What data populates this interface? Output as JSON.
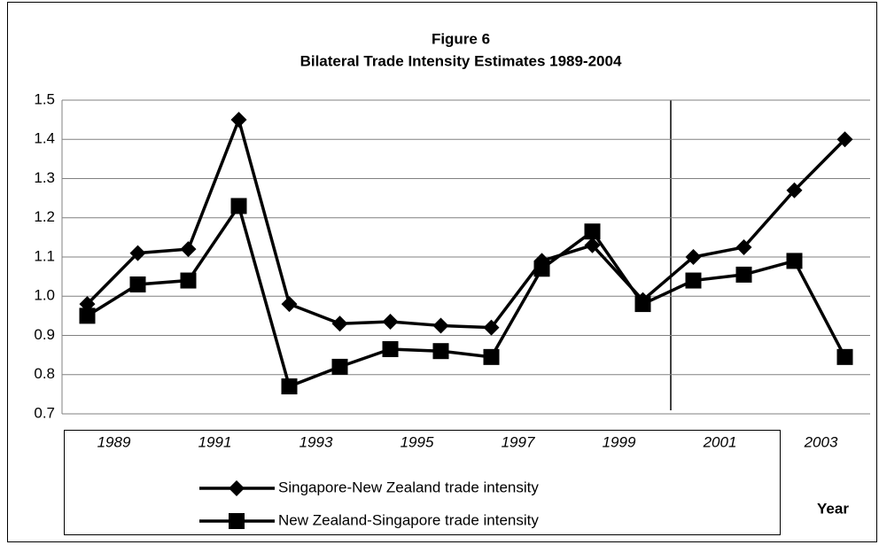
{
  "chart_data": {
    "type": "line",
    "title": "Figure 6",
    "subtitle": "Bilateral Trade Intensity Estimates 1989-2004",
    "x_label": "Year",
    "categories": [
      "1989",
      null,
      "1991",
      null,
      "1993",
      null,
      "1995",
      null,
      "1997",
      null,
      "1999",
      null,
      "2001",
      null,
      "2003",
      null
    ],
    "series": [
      {
        "name": "Singapore-New Zealand trade intensity",
        "color": "#000000",
        "marker": "diamond",
        "values": [
          0.98,
          1.11,
          1.12,
          1.45,
          0.98,
          0.93,
          0.935,
          0.925,
          0.92,
          1.09,
          1.13,
          0.99,
          1.1,
          1.125,
          1.27,
          1.4
        ]
      },
      {
        "name": "New Zealand-Singapore trade intensity",
        "color": "#000000",
        "marker": "square",
        "values": [
          0.95,
          1.03,
          1.04,
          1.23,
          0.77,
          0.82,
          0.865,
          0.86,
          0.845,
          1.07,
          1.165,
          0.98,
          1.04,
          1.055,
          1.09,
          0.845
        ]
      }
    ],
    "ylim": [
      0.7,
      1.5
    ],
    "yticks": [
      0.7,
      0.8,
      0.9,
      {
        "value": 1,
        "label": "1.0"
      },
      1.1,
      1.2,
      1.3,
      1.4,
      1.5
    ],
    "grid": true
  }
}
